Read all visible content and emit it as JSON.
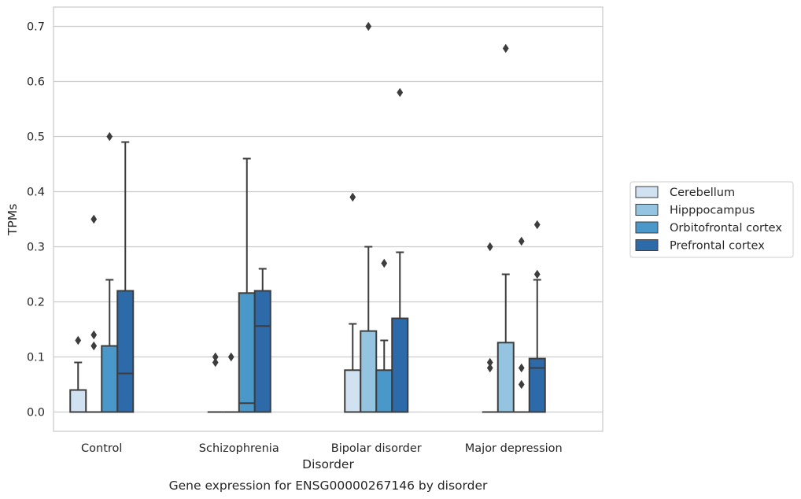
{
  "chart_data": {
    "type": "box",
    "xlabel": "Disorder",
    "ylabel": "TPMs",
    "ylim": [
      -0.035,
      0.735
    ],
    "yticks": [
      "0.0",
      "0.1",
      "0.2",
      "0.3",
      "0.4",
      "0.5",
      "0.6",
      "0.7"
    ],
    "grid": "horizontal",
    "legend_position": "right",
    "categories": [
      "Control",
      "Schizophrenia",
      "Bipolar disorder",
      "Major depression"
    ],
    "series": [
      {
        "name": "Cerebellum",
        "color": "#d0e1f2",
        "boxes": [
          {
            "q1": 0.0,
            "median": 0.0,
            "q3": 0.04,
            "whisker_low": 0.0,
            "whisker_high": 0.09,
            "outliers": [
              0.13
            ]
          },
          {
            "q1": 0.0,
            "median": 0.0,
            "q3": 0.0,
            "whisker_low": 0.0,
            "whisker_high": 0.0,
            "outliers": [
              0.09,
              0.1
            ]
          },
          {
            "q1": 0.0,
            "median": 0.0,
            "q3": 0.076,
            "whisker_low": 0.0,
            "whisker_high": 0.16,
            "outliers": [
              0.39
            ]
          },
          {
            "q1": 0.0,
            "median": 0.0,
            "q3": 0.0,
            "whisker_low": 0.0,
            "whisker_high": 0.0,
            "outliers": [
              0.08,
              0.09,
              0.3
            ]
          }
        ]
      },
      {
        "name": "Hipppocampus",
        "color": "#94c4df",
        "boxes": [
          {
            "q1": 0.0,
            "median": 0.0,
            "q3": 0.0,
            "whisker_low": 0.0,
            "whisker_high": 0.0,
            "outliers": [
              0.12,
              0.14,
              0.35
            ]
          },
          {
            "q1": 0.0,
            "median": 0.0,
            "q3": 0.0,
            "whisker_low": 0.0,
            "whisker_high": 0.0,
            "outliers": [
              0.1
            ]
          },
          {
            "q1": 0.0,
            "median": 0.0,
            "q3": 0.147,
            "whisker_low": 0.0,
            "whisker_high": 0.3,
            "outliers": [
              0.7
            ]
          },
          {
            "q1": 0.0,
            "median": 0.0,
            "q3": 0.126,
            "whisker_low": 0.0,
            "whisker_high": 0.25,
            "outliers": [
              0.66
            ]
          }
        ]
      },
      {
        "name": "Orbitofrontal cortex",
        "color": "#4a98c9",
        "boxes": [
          {
            "q1": 0.0,
            "median": 0.0,
            "q3": 0.12,
            "whisker_low": 0.0,
            "whisker_high": 0.24,
            "outliers": [
              0.5
            ]
          },
          {
            "q1": 0.0,
            "median": 0.016,
            "q3": 0.216,
            "whisker_low": 0.0,
            "whisker_high": 0.46,
            "outliers": []
          },
          {
            "q1": 0.0,
            "median": 0.0,
            "q3": 0.076,
            "whisker_low": 0.0,
            "whisker_high": 0.13,
            "outliers": [
              0.27
            ]
          },
          {
            "q1": 0.0,
            "median": 0.0,
            "q3": 0.0,
            "whisker_low": 0.0,
            "whisker_high": 0.0,
            "outliers": [
              0.05,
              0.08,
              0.31
            ]
          }
        ]
      },
      {
        "name": "Prefrontal cortex",
        "color": "#2c6aa9",
        "boxes": [
          {
            "q1": 0.0,
            "median": 0.07,
            "q3": 0.22,
            "whisker_low": 0.0,
            "whisker_high": 0.49,
            "outliers": []
          },
          {
            "q1": 0.0,
            "median": 0.156,
            "q3": 0.22,
            "whisker_low": 0.0,
            "whisker_high": 0.26,
            "outliers": []
          },
          {
            "q1": 0.0,
            "median": 0.0,
            "q3": 0.17,
            "whisker_low": 0.0,
            "whisker_high": 0.29,
            "outliers": [
              0.58
            ]
          },
          {
            "q1": 0.0,
            "median": 0.08,
            "q3": 0.097,
            "whisker_low": 0.0,
            "whisker_high": 0.24,
            "outliers": [
              0.25,
              0.34
            ]
          }
        ]
      }
    ],
    "caption": "Gene expression for ENSG00000267146 by disorder"
  }
}
